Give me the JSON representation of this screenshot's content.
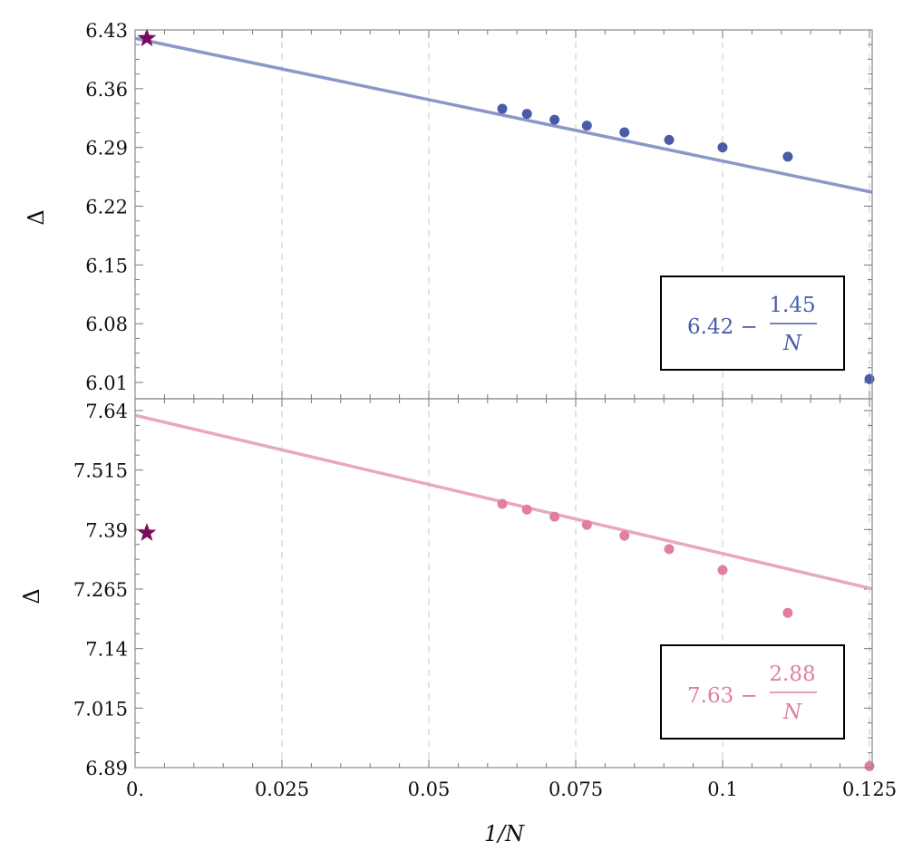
{
  "chart_data": [
    {
      "type": "scatter",
      "panel": "top",
      "title": "",
      "xlabel": "1/N",
      "ylabel": "Δ",
      "xlim": [
        0,
        0.125
      ],
      "ylim": [
        6.01,
        6.43
      ],
      "xticks": [
        "0.",
        "0.025",
        "0.05",
        "0.075",
        "0.1",
        "0.125"
      ],
      "yticks": [
        "6.01",
        "6.08",
        "6.15",
        "6.22",
        "6.29",
        "6.36",
        "6.43"
      ],
      "grid": "vertical dashed at major x ticks",
      "color_points": "#4a5ba8",
      "color_line": "#8a97c8",
      "series": [
        {
          "name": "data",
          "x": [
            0.0625,
            0.0667,
            0.0714,
            0.0769,
            0.0833,
            0.0909,
            0.1,
            0.1111,
            0.125
          ],
          "y": [
            6.336,
            6.33,
            6.323,
            6.316,
            6.308,
            6.299,
            6.29,
            6.279,
            6.014
          ]
        },
        {
          "name": "fit",
          "type": "line",
          "expression": "6.42 - 1.45/N",
          "intercept": 6.42,
          "slope": -1.45
        },
        {
          "name": "reference",
          "marker": "star",
          "color": "#7a0a5c",
          "x": [
            0.002
          ],
          "y": [
            6.42
          ]
        }
      ],
      "legend": {
        "text_left": "6.42 −",
        "numerator": "1.45",
        "denominator": "N",
        "position": "lower right"
      }
    },
    {
      "type": "scatter",
      "panel": "bottom",
      "title": "",
      "xlabel": "1/N",
      "ylabel": "Δ",
      "xlim": [
        0,
        0.125
      ],
      "ylim": [
        6.89,
        7.64
      ],
      "xticks": [
        "0.",
        "0.025",
        "0.05",
        "0.075",
        "0.1",
        "0.125"
      ],
      "yticks": [
        "6.89",
        "7.015",
        "7.14",
        "7.265",
        "7.39",
        "7.515",
        "7.64"
      ],
      "grid": "vertical dashed at major x ticks",
      "color_points": "#e07fa0",
      "color_line": "#e8a8bd",
      "series": [
        {
          "name": "data",
          "x": [
            0.0625,
            0.0667,
            0.0714,
            0.0769,
            0.0833,
            0.0909,
            0.1,
            0.1111,
            0.125
          ],
          "y": [
            7.444,
            7.432,
            7.417,
            7.4,
            7.377,
            7.349,
            7.305,
            7.215,
            6.893
          ]
        },
        {
          "name": "fit",
          "type": "line",
          "expression": "7.63 - 2.88/N",
          "intercept": 7.63,
          "slope": -2.88
        },
        {
          "name": "reference",
          "marker": "star",
          "color": "#7a0a5c",
          "x": [
            0.002
          ],
          "y": [
            7.383
          ]
        }
      ],
      "legend": {
        "text_left": "7.63 −",
        "numerator": "2.88",
        "denominator": "N",
        "position": "lower right"
      }
    }
  ],
  "labels": {
    "xlabel": "1/N",
    "ylabel_top": "Δ",
    "ylabel_bottom": "Δ"
  }
}
